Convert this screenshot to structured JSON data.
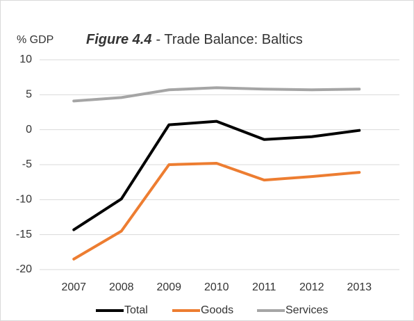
{
  "chart_data": {
    "type": "line",
    "title": {
      "bold": "Figure 4.4",
      "rest": "- Trade Balance: Baltics"
    },
    "y_label": "% GDP",
    "categories": [
      "2007",
      "2008",
      "2009",
      "2010",
      "2011",
      "2012",
      "2013"
    ],
    "series": [
      {
        "name": "Total",
        "color": "#000000",
        "values": [
          -14.3,
          -9.9,
          0.7,
          1.2,
          -1.4,
          -1.0,
          -0.1
        ]
      },
      {
        "name": "Goods",
        "color": "#ed7d31",
        "values": [
          -18.5,
          -14.5,
          -5.0,
          -4.8,
          -7.2,
          -6.7,
          -6.1
        ]
      },
      {
        "name": "Services",
        "color": "#a5a5a5",
        "values": [
          4.1,
          4.6,
          5.7,
          6.0,
          5.8,
          5.7,
          5.8
        ]
      }
    ],
    "ylim": [
      -20,
      10
    ],
    "yticks": [
      -20,
      -15,
      -10,
      -5,
      0,
      5,
      10
    ],
    "grid": true,
    "legend": "bottom"
  }
}
